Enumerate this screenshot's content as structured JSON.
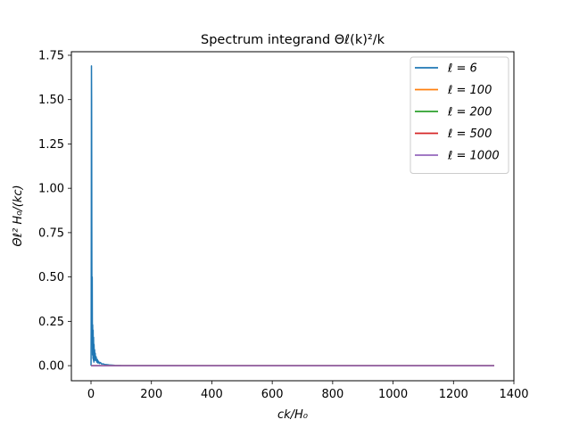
{
  "chart_data": {
    "type": "line",
    "title": "Spectrum integrand Θℓ(k)²/k",
    "xlabel": "ck/H₀",
    "ylabel": "Θℓ² H₀/(kc)",
    "xlim": [
      -65,
      1400
    ],
    "ylim": [
      -0.085,
      1.77
    ],
    "xticks": [
      0,
      200,
      400,
      600,
      800,
      1000,
      1200,
      1400
    ],
    "yticks": [
      0.0,
      0.25,
      0.5,
      0.75,
      1.0,
      1.25,
      1.5,
      1.75
    ],
    "xtick_labels": [
      "0",
      "200",
      "400",
      "600",
      "800",
      "1000",
      "1200",
      "1400"
    ],
    "ytick_labels": [
      "0.00",
      "0.25",
      "0.50",
      "0.75",
      "1.00",
      "1.25",
      "1.50",
      "1.75"
    ],
    "legend_position": "top-right",
    "grid": false,
    "series": [
      {
        "name": "ℓ = 6",
        "color": "#1f77b4",
        "x": [
          0.1,
          0.5,
          1.0,
          1.5,
          2.0,
          2.5,
          3.0,
          3.5,
          4.0,
          4.5,
          5.0,
          5.5,
          6.0,
          6.5,
          7.0,
          7.5,
          8.0,
          8.5,
          9.0,
          9.5,
          10,
          11,
          12,
          13,
          14,
          15,
          17,
          19,
          21,
          23,
          25,
          28,
          31,
          35,
          40,
          45,
          50,
          60,
          70,
          80,
          100,
          130,
          200,
          400,
          800,
          1335
        ],
        "y": [
          0.0,
          0.2,
          0.85,
          1.69,
          1.5,
          0.9,
          0.35,
          0.15,
          0.5,
          0.2,
          0.06,
          0.23,
          0.12,
          0.04,
          0.2,
          0.1,
          0.03,
          0.16,
          0.08,
          0.02,
          0.12,
          0.05,
          0.09,
          0.03,
          0.07,
          0.03,
          0.05,
          0.02,
          0.035,
          0.015,
          0.025,
          0.012,
          0.018,
          0.01,
          0.01,
          0.007,
          0.006,
          0.004,
          0.003,
          0.002,
          0.001,
          0.0007,
          0.0004,
          0.0001,
          0.0,
          0.0
        ]
      },
      {
        "name": "ℓ = 100",
        "color": "#ff7f0e",
        "x": [
          0.1,
          1335
        ],
        "y": [
          0.0,
          0.0
        ]
      },
      {
        "name": "ℓ = 200",
        "color": "#2ca02c",
        "x": [
          0.1,
          1335
        ],
        "y": [
          0.0,
          0.0
        ]
      },
      {
        "name": "ℓ = 500",
        "color": "#d62728",
        "x": [
          0.1,
          1335
        ],
        "y": [
          0.0,
          0.0
        ]
      },
      {
        "name": "ℓ = 1000",
        "color": "#9467bd",
        "x": [
          0.1,
          1335
        ],
        "y": [
          0.0,
          0.0
        ]
      }
    ]
  }
}
